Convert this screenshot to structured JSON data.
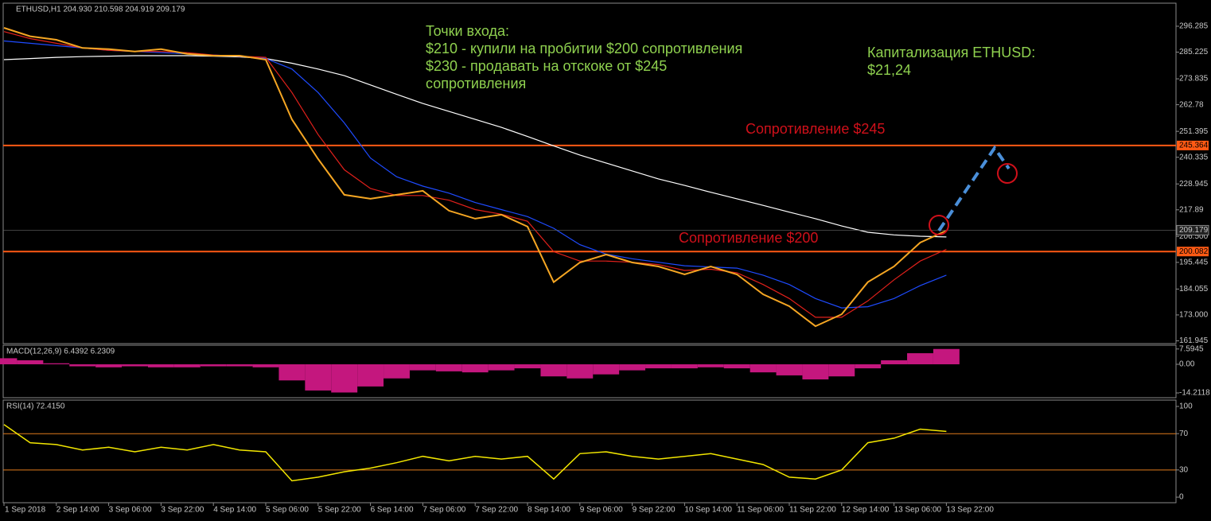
{
  "chart_data": [
    {
      "type": "line",
      "title": "ETHUSD,H1 204.930 210.598 204.919 209.179",
      "categories": [
        "1 Sep 2018",
        null,
        "2 Sep 14:00",
        null,
        "3 Sep 06:00",
        null,
        "3 Sep 22:00",
        null,
        "4 Sep 14:00",
        null,
        "5 Sep 06:00",
        null,
        "5 Sep 22:00",
        null,
        "6 Sep 14:00",
        null,
        "7 Sep 06:00",
        null,
        "7 Sep 22:00",
        null,
        "8 Sep 14:00",
        null,
        "9 Sep 06:00",
        null,
        "9 Sep 22:00",
        null,
        "10 Sep 14:00",
        null,
        "11 Sep 06:00",
        null,
        "11 Sep 22:00",
        null,
        "12 Sep 14:00",
        null,
        "13 Sep 06:00",
        null,
        "13 Sep 22:00"
      ],
      "series": [
        {
          "color": "#ffffff",
          "values": [
            282,
            282.5,
            283,
            283.3,
            283.5,
            283.7,
            283.7,
            283.7,
            283.5,
            283.2,
            282.5,
            280.5,
            278,
            275.2,
            271.2,
            267.2,
            263.3,
            259.9,
            256.5,
            253.1,
            249.2,
            245.2,
            241.3,
            237.9,
            234.5,
            231.1,
            228.3,
            225.4,
            222.6,
            219.8,
            216.9,
            214.1,
            211,
            208.3,
            207.2,
            206.6,
            206.3
          ]
        },
        {
          "color": "#1e4bff",
          "values": [
            290,
            289,
            288,
            287,
            286,
            285.5,
            285,
            284.5,
            284,
            283.5,
            282.5,
            278,
            268,
            255,
            240,
            232,
            228,
            225,
            221,
            218,
            215,
            210,
            203,
            199,
            197,
            195.5,
            194,
            193.5,
            193,
            190,
            186,
            180,
            176,
            176.5,
            180,
            185.5,
            190
          ]
        },
        {
          "color": "#e0201b",
          "values": [
            294,
            291,
            289,
            287,
            286,
            285.5,
            285.5,
            285,
            284,
            283.5,
            283,
            268,
            250,
            235,
            227,
            224,
            224,
            222,
            218,
            216,
            213,
            200,
            196,
            196,
            195.5,
            194.5,
            192,
            192.5,
            191,
            186,
            180,
            172,
            172,
            179,
            188,
            196,
            201
          ]
        },
        {
          "color": "#f5a623",
          "values": [
            295.6,
            292,
            290.5,
            287,
            286.5,
            285.5,
            286.5,
            284.5,
            283.7,
            283.7,
            282,
            256.5,
            239.6,
            224.3,
            222.6,
            224.3,
            226,
            217.5,
            214.1,
            215.8,
            210.7,
            187,
            195.4,
            198.8,
            195.4,
            193.7,
            190.3,
            193.7,
            190.3,
            181.8,
            176.7,
            168.2,
            173.3,
            187,
            193.7,
            203.9,
            209
          ]
        }
      ],
      "ylim": [
        160.75,
        306.13
      ],
      "yticks": [
        296.285,
        285.225,
        273.835,
        262.78,
        251.395,
        240.335,
        228.945,
        217.89,
        {
          "value": 206.5,
          "label": "206.500"
        },
        195.445,
        184.055,
        {
          "value": 173,
          "label": "173.000"
        },
        161.945
      ],
      "levels": [
        245.364,
        200.082
      ],
      "level_color": "#ff5a14",
      "last_price": 209.179,
      "annotations": [
        {
          "text": "Точки входа:",
          "color": "#8fd14f"
        },
        {
          "text": "$210 - купили на пробитии $200 сопротивления",
          "color": "#8fd14f"
        },
        {
          "text": "$230 - продавать на отскоке от $245",
          "color": "#8fd14f"
        },
        {
          "text": "сопротивления",
          "color": "#8fd14f"
        },
        {
          "text": "Капитализация ETHUSD:",
          "color": "#8fd14f"
        },
        {
          "text": "$21,24",
          "color": "#8fd14f"
        },
        {
          "text": "Сопротивление $245",
          "color": "#d0101a"
        },
        {
          "text": "Сопротивление $200",
          "color": "#d0101a"
        }
      ]
    },
    {
      "type": "bar",
      "title": "MACD(12,26,9) 6.4392 6.2309",
      "color": "#c4177e",
      "values": [
        3,
        2,
        0.5,
        -1,
        -1.5,
        -1,
        -1.5,
        -1.5,
        -1,
        -1,
        -1.5,
        -8,
        -13,
        -14,
        -11,
        -7,
        -3,
        -3.5,
        -4,
        -3,
        -2,
        -6,
        -7,
        -5,
        -3,
        -2,
        -2,
        -1.5,
        -2,
        -4,
        -5.5,
        -7.5,
        -6,
        -2,
        2,
        5.5,
        7.6
      ],
      "ylim": [
        -16.58,
        9.47
      ],
      "yticks": [
        7.5945,
        {
          "value": 0,
          "label": "0.00"
        },
        -14.2118
      ]
    },
    {
      "type": "line",
      "title": "RSI(14) 72.4150",
      "color": "#f2e600",
      "values": [
        80,
        60,
        58,
        52,
        55,
        50,
        55,
        52,
        58,
        52,
        50,
        18,
        22,
        28,
        32,
        38,
        45,
        40,
        45,
        42,
        45,
        20,
        48,
        50,
        45,
        42,
        45,
        48,
        42,
        36,
        22,
        20,
        30,
        60,
        65,
        75,
        72.415
      ],
      "ylim": [
        -6.1,
        107
      ],
      "yticks": [
        100,
        70,
        30,
        0
      ],
      "levels": [
        70,
        30
      ],
      "level_color": "#e07a1c"
    }
  ]
}
